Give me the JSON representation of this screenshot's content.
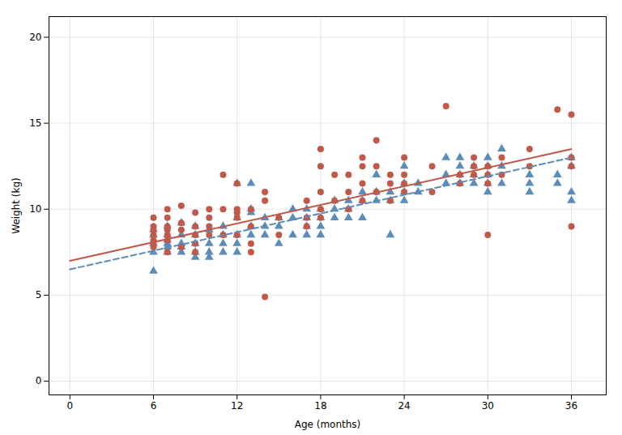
{
  "chart_data": {
    "type": "scatter",
    "xlabel": "Age (months)",
    "ylabel": "Weight (kg)",
    "xlim": [
      -1.5,
      38.5
    ],
    "ylim": [
      -0.8,
      21.2
    ],
    "xticks": [
      0,
      6,
      12,
      18,
      24,
      30,
      36
    ],
    "yticks": [
      0,
      5,
      10,
      15,
      20
    ],
    "grid": true,
    "series": [
      {
        "type": "scatter",
        "marker": "triangle",
        "color": "#5B8DB8",
        "x": [
          6,
          6,
          6,
          6,
          6,
          7,
          7,
          7,
          7,
          7,
          7,
          8,
          8,
          8,
          8,
          8,
          9,
          9,
          9,
          9,
          9,
          10,
          10,
          10,
          10,
          11,
          11,
          11,
          11,
          12,
          12,
          12,
          12,
          12,
          13,
          13,
          13,
          13,
          13,
          14,
          14,
          14,
          15,
          15,
          15,
          16,
          16,
          16,
          17,
          17,
          17,
          17,
          18,
          18,
          18,
          18,
          19,
          19,
          19,
          20,
          20,
          20,
          21,
          21,
          21,
          22,
          22,
          22,
          23,
          23,
          23,
          24,
          24,
          24,
          24,
          25,
          25,
          27,
          27,
          27,
          28,
          28,
          28,
          28,
          29,
          29,
          29,
          30,
          30,
          30,
          30,
          30,
          31,
          31,
          31,
          33,
          33,
          33,
          35,
          35,
          36,
          36,
          36,
          36
        ],
        "values": [
          6.4,
          7.5,
          8.0,
          8.5,
          8.8,
          7.5,
          8.0,
          8.5,
          9.0,
          7.8,
          8.2,
          7.5,
          8.0,
          8.5,
          7.8,
          9.2,
          8.0,
          7.5,
          8.5,
          7.2,
          9.0,
          8.0,
          7.5,
          8.8,
          7.2,
          8.5,
          9.0,
          7.5,
          8.0,
          8.5,
          9.5,
          11.5,
          7.5,
          8.0,
          9.0,
          8.5,
          9.8,
          10.0,
          11.5,
          9.5,
          8.5,
          9.0,
          9.0,
          9.5,
          8.0,
          9.5,
          10.0,
          8.5,
          9.5,
          10.0,
          9.0,
          8.5,
          9.5,
          10.0,
          9.0,
          8.5,
          10.0,
          9.5,
          10.5,
          10.5,
          9.5,
          10.0,
          10.5,
          11.0,
          9.5,
          11.0,
          10.5,
          12.0,
          11.0,
          10.5,
          8.5,
          11.5,
          11.0,
          10.5,
          12.5,
          11.0,
          11.5,
          12.0,
          11.5,
          13.0,
          12.0,
          11.5,
          12.5,
          13.0,
          12.5,
          11.5,
          12.0,
          12.5,
          11.5,
          12.0,
          11.0,
          13.0,
          11.5,
          12.5,
          13.5,
          12.0,
          11.5,
          11.0,
          11.5,
          12.0,
          12.5,
          11.0,
          13.0,
          10.5
        ]
      },
      {
        "type": "scatter",
        "marker": "circle",
        "color": "#C0594A",
        "x": [
          6,
          6,
          6,
          6,
          6,
          6,
          6,
          7,
          7,
          7,
          7,
          7,
          7,
          7,
          8,
          8,
          8,
          8,
          9,
          9,
          9,
          9,
          9,
          10,
          10,
          10,
          10,
          11,
          11,
          11,
          12,
          12,
          12,
          12,
          12,
          13,
          13,
          13,
          13,
          14,
          14,
          14,
          15,
          15,
          17,
          17,
          17,
          18,
          18,
          18,
          18,
          18,
          19,
          19,
          20,
          20,
          20,
          21,
          21,
          21,
          21,
          22,
          22,
          22,
          23,
          23,
          23,
          24,
          24,
          24,
          24,
          26,
          26,
          27,
          28,
          28,
          29,
          29,
          29,
          30,
          30,
          30,
          30,
          31,
          31,
          33,
          33,
          35,
          36,
          36,
          36,
          36
        ],
        "values": [
          8.8,
          8.5,
          9.0,
          8.2,
          7.8,
          9.5,
          8.0,
          8.8,
          9.0,
          7.5,
          8.5,
          9.5,
          10.0,
          8.2,
          8.8,
          9.2,
          7.8,
          10.2,
          8.5,
          9.0,
          8.0,
          7.5,
          9.8,
          9.5,
          9.0,
          8.5,
          10.0,
          8.5,
          10.0,
          12.0,
          10.0,
          9.5,
          11.5,
          9.8,
          8.5,
          9.0,
          10.0,
          8.0,
          7.5,
          10.5,
          11.0,
          4.9,
          9.5,
          8.5,
          10.5,
          9.5,
          9.0,
          10.0,
          9.5,
          11.0,
          12.5,
          13.5,
          10.5,
          12.0,
          10.0,
          11.0,
          12.0,
          10.5,
          11.5,
          12.5,
          13.0,
          11.0,
          12.5,
          14.0,
          11.5,
          12.0,
          10.5,
          11.0,
          12.0,
          13.0,
          11.5,
          12.5,
          11.0,
          16.0,
          12.0,
          11.5,
          12.5,
          12.0,
          13.0,
          12.0,
          12.5,
          11.5,
          8.5,
          12.0,
          13.0,
          12.5,
          13.5,
          15.8,
          13.0,
          12.5,
          15.5,
          9.0
        ]
      },
      {
        "type": "line",
        "line_style": "dashed",
        "color": "#5B8DB8",
        "x": [
          0,
          36
        ],
        "values": [
          6.5,
          13.0
        ]
      },
      {
        "type": "line",
        "line_style": "solid",
        "color": "#C0594A",
        "x": [
          0,
          36
        ],
        "values": [
          7.0,
          13.5
        ]
      }
    ]
  }
}
